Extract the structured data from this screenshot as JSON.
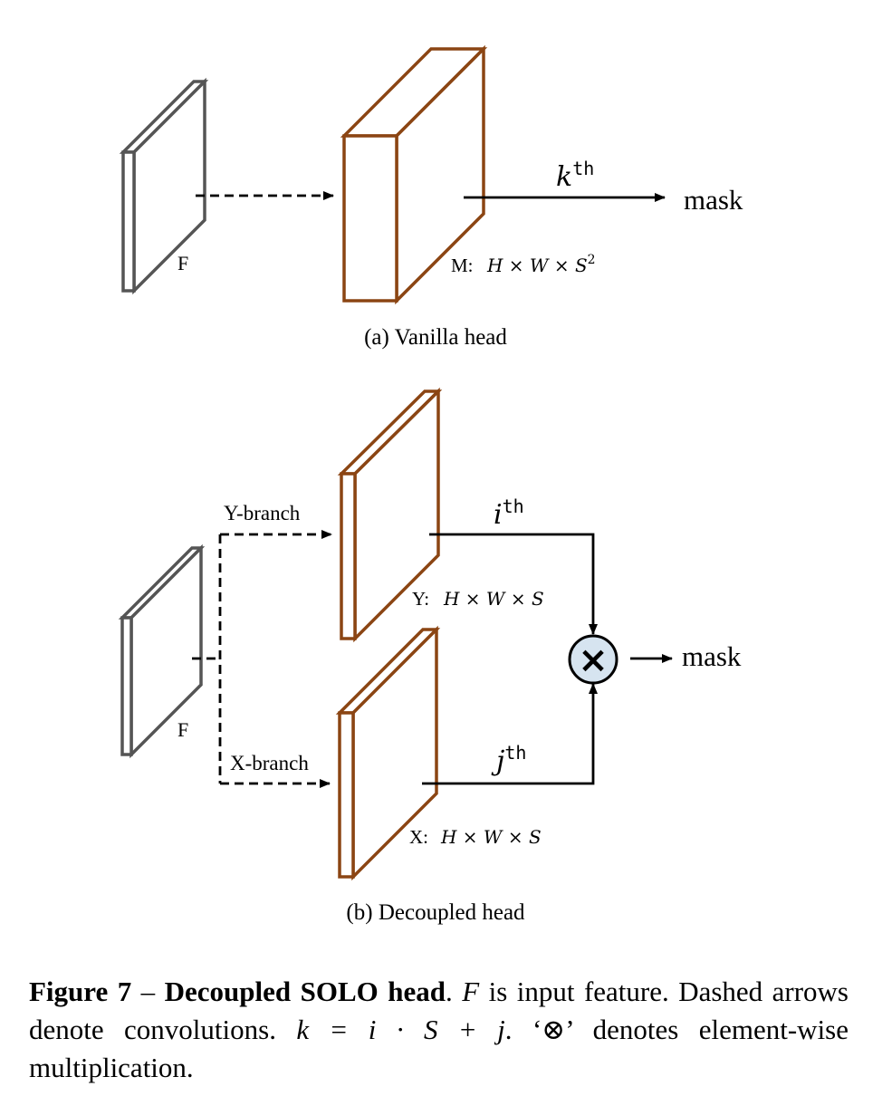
{
  "panel_a": {
    "input_label": "F",
    "output_label": "M:",
    "output_dims": "H × W × S",
    "output_dims_sup": "2",
    "arrow_label": "k",
    "arrow_label_sup": "th",
    "result_label": "mask",
    "caption": "(a)  Vanilla head"
  },
  "panel_b": {
    "input_label": "F",
    "y_branch_label": "Y-branch",
    "x_branch_label": "X-branch",
    "y_output_label": "Y:",
    "y_output_dims": "H × W × S",
    "x_output_label": "X:",
    "x_output_dims": "H × W × S",
    "i_label": "i",
    "i_label_sup": "th",
    "j_label": "j",
    "j_label_sup": "th",
    "multiply_symbol": "×",
    "result_label": "mask",
    "caption": "(b)  Decoupled head"
  },
  "caption": {
    "figure_number": "Figure 7",
    "dash": " – ",
    "title": "Decoupled SOLO head",
    "text_1": ". ",
    "f_symbol": "F",
    "text_2": " is input feature. Dashed arrows denote convolutions. ",
    "equation": "k = i · S + j",
    "text_3": ". ‘⊗’ denotes element-wise multiplication."
  },
  "colors": {
    "input_block": "#555555",
    "output_block": "#8B4513",
    "multiply_fill": "#d6e4f0",
    "line": "#000000"
  }
}
